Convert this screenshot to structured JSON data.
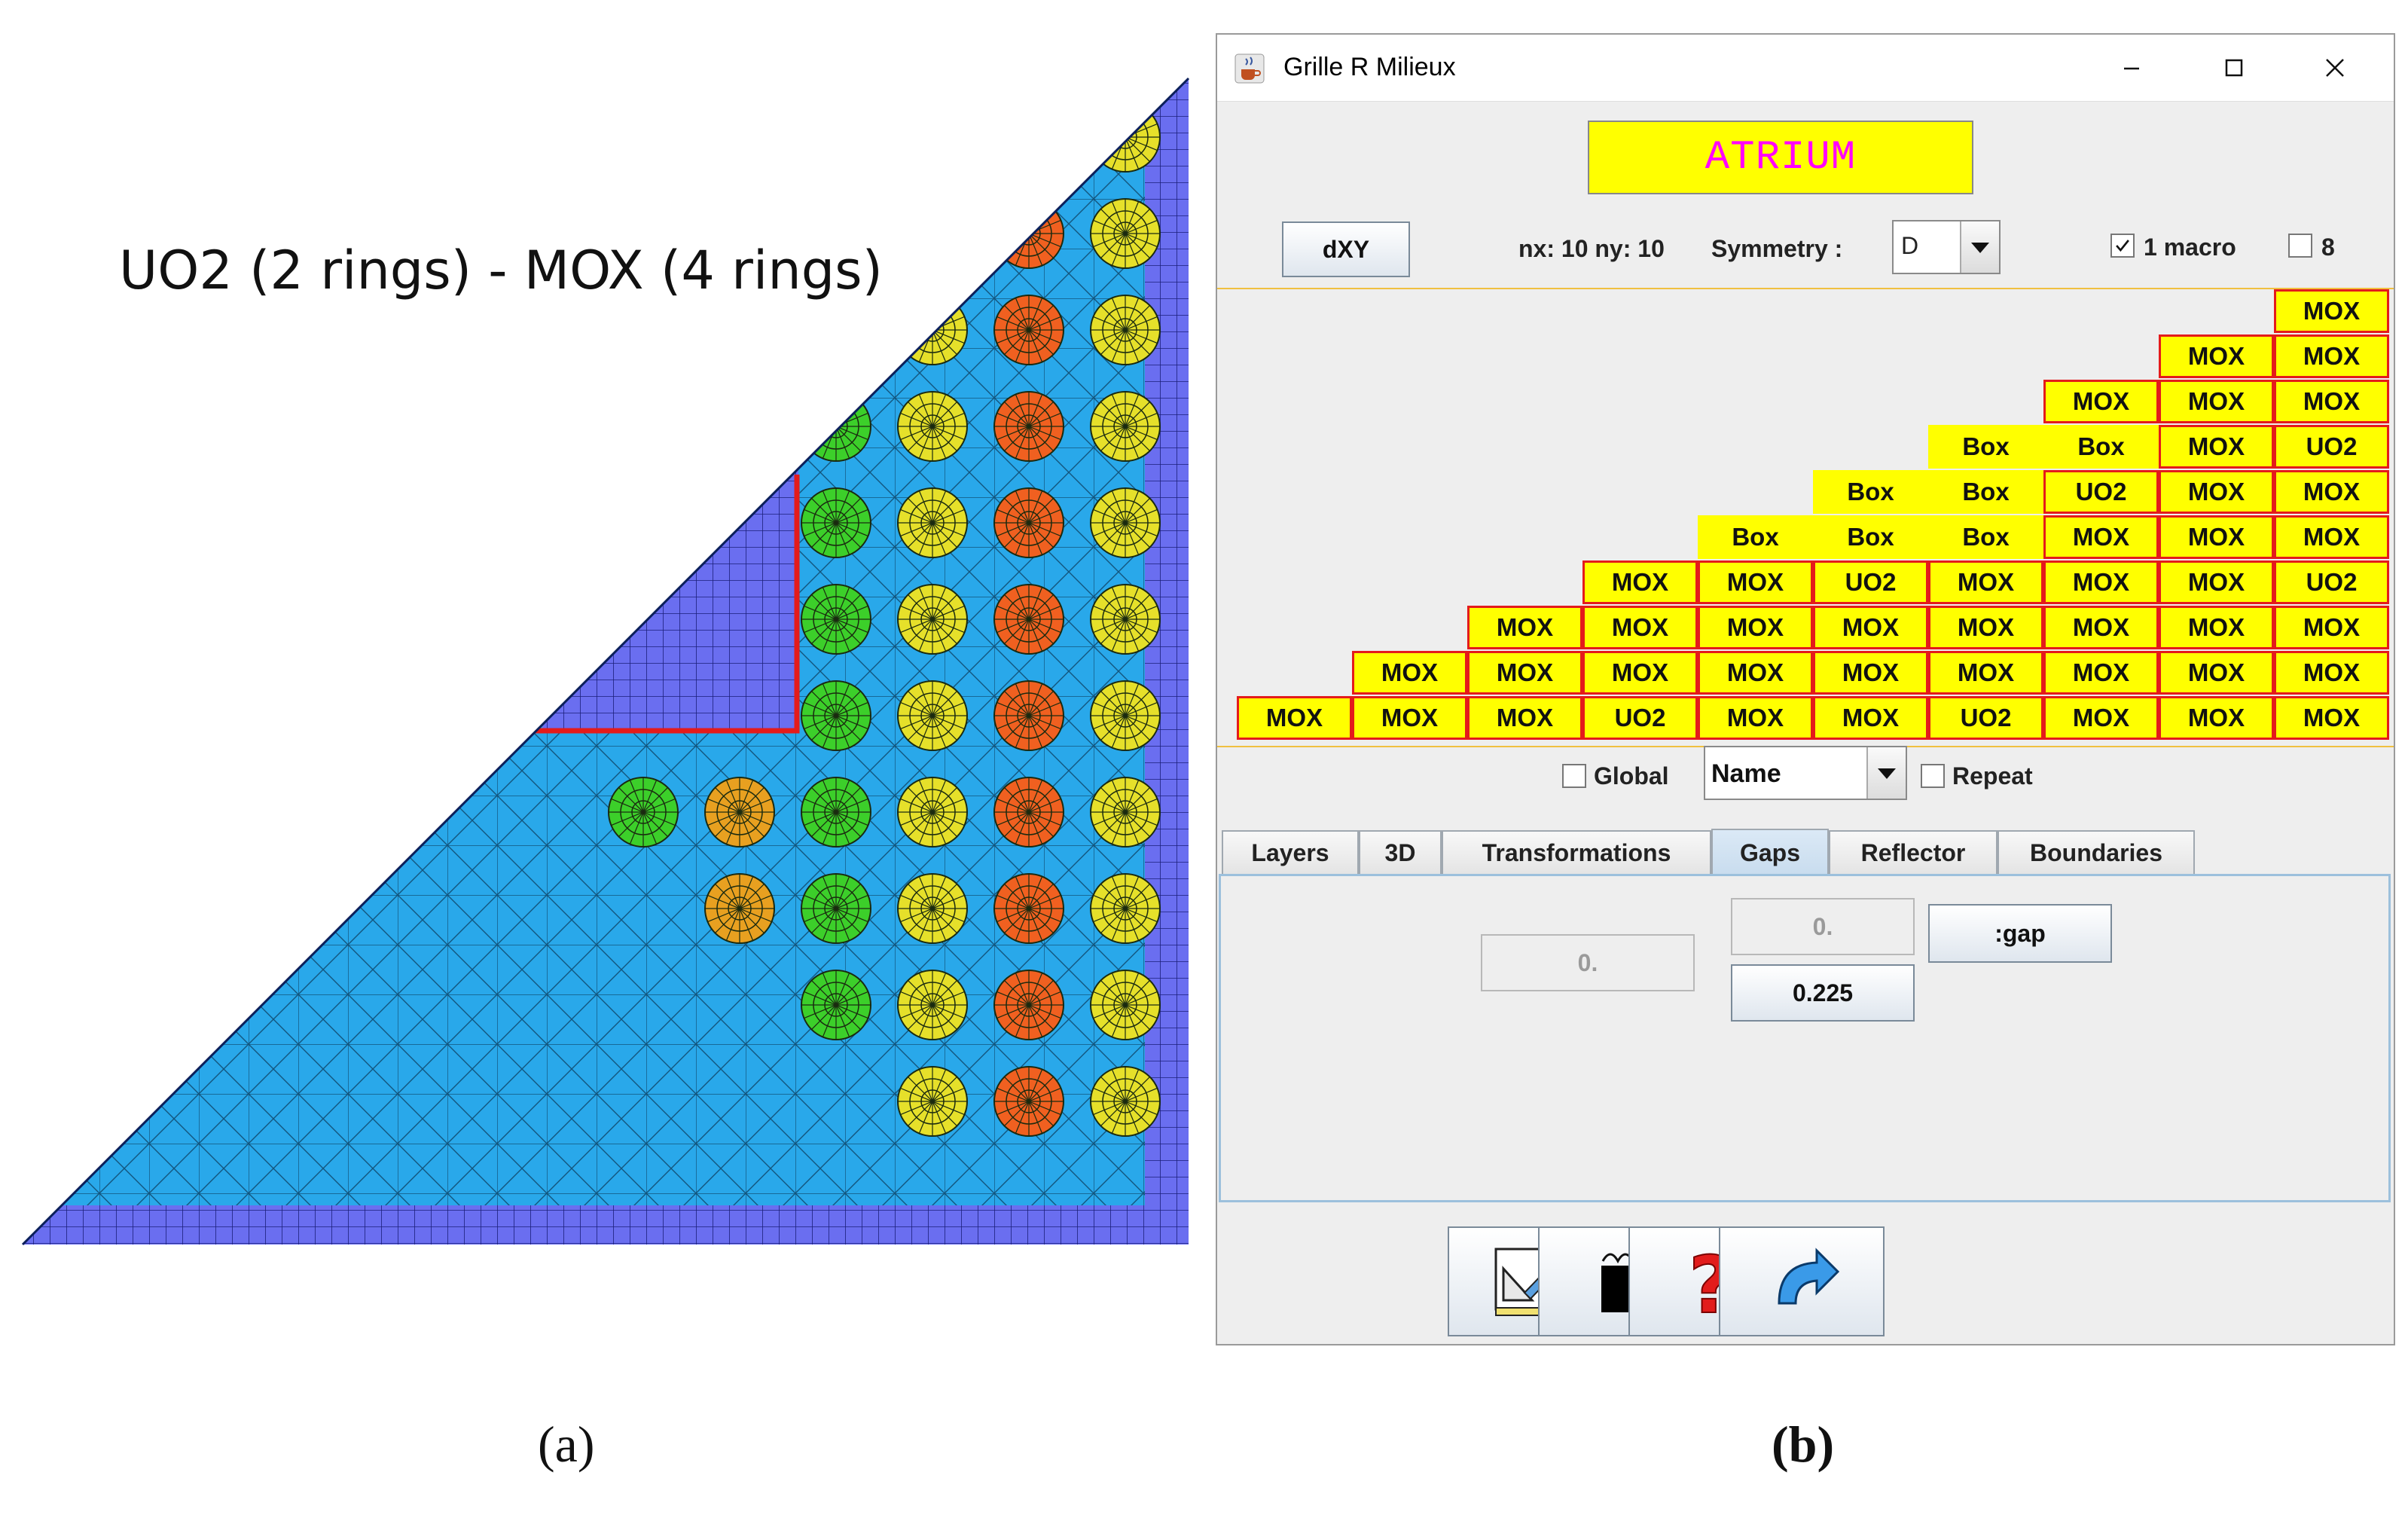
{
  "panel_a": {
    "title": "UO2 (2 rings) - MOX (4 rings)",
    "caption": "(a)"
  },
  "panel_b": {
    "caption": "(b)",
    "window": {
      "title": "Grille R Milieux",
      "controls": [
        "minimize",
        "maximize",
        "close"
      ]
    },
    "assembly_name": "ATRIUM",
    "toolbar": {
      "dxy_label": "dXY",
      "grid_size": "nx: 10 ny: 10",
      "symmetry_label": "Symmetry :",
      "symmetry_value": "D",
      "macro1_label": "1 macro",
      "macro1_checked": true,
      "macro8_label": "8",
      "macro8_checked": false
    },
    "grid": {
      "rows": [
        [
          "MOX"
        ],
        [
          "MOX",
          "MOX"
        ],
        [
          "MOX",
          "MOX",
          "MOX"
        ],
        [
          "Box",
          "Box",
          "MOX",
          "UO2"
        ],
        [
          "Box",
          "Box",
          "UO2",
          "MOX",
          "MOX"
        ],
        [
          "Box",
          "Box",
          "Box",
          "MOX",
          "MOX",
          "MOX"
        ],
        [
          "MOX",
          "MOX",
          "UO2",
          "MOX",
          "MOX",
          "MOX",
          "UO2"
        ],
        [
          "MOX",
          "MOX",
          "MOX",
          "MOX",
          "MOX",
          "MOX",
          "MOX",
          "MOX"
        ],
        [
          "MOX",
          "MOX",
          "MOX",
          "MOX",
          "MOX",
          "MOX",
          "MOX",
          "MOX",
          "MOX"
        ],
        [
          "MOX",
          "MOX",
          "MOX",
          "UO2",
          "MOX",
          "MOX",
          "UO2",
          "MOX",
          "MOX",
          "MOX"
        ]
      ],
      "cell_fill": "#ffff00",
      "cell_border": "#e41b1b"
    },
    "grid_options": {
      "global_label": "Global",
      "global_checked": false,
      "display_value": "Name",
      "repeat_label": "Repeat",
      "repeat_checked": false
    },
    "tabs": [
      "Layers",
      "3D",
      "Transformations",
      "Gaps",
      "Reflector",
      "Boundaries"
    ],
    "active_tab": "Gaps",
    "gaps": {
      "field1": "0.",
      "field2": "0.",
      "gap_button": ":gap",
      "gap_value": "0.225"
    },
    "bottom_buttons": [
      "edit-icon",
      "stop-icon",
      "help-icon",
      "return-icon"
    ]
  }
}
